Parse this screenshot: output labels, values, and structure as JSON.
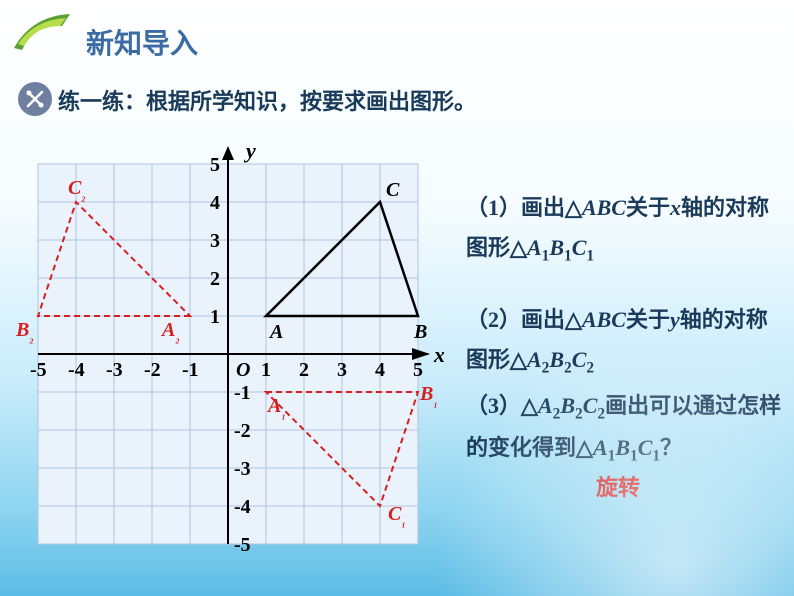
{
  "header": {
    "title": "新知导入",
    "logo_colors": [
      "#5aa035",
      "#b5de4a"
    ]
  },
  "practice": {
    "label": "练一练：根据所学知识，按要求画出图形。",
    "icon": "✕"
  },
  "chart": {
    "type": "coordinate-plane",
    "xlim": [
      -5,
      5
    ],
    "ylim": [
      -5,
      5
    ],
    "tick_step": 1,
    "grid_color": "#b0c4e0",
    "axis_color": "#000000",
    "background_color": "#eaf2fb",
    "axis_labels": {
      "x": "x",
      "y": "y",
      "origin": "O"
    },
    "x_ticks": [
      "-5",
      "-4",
      "-3",
      "-2",
      "-1",
      "1",
      "2",
      "3",
      "4",
      "5"
    ],
    "y_ticks_pos": [
      "1",
      "2",
      "3",
      "4",
      "5"
    ],
    "y_ticks_neg": [
      "-1",
      "-2",
      "-3",
      "-4",
      "-5"
    ],
    "triangles": {
      "ABC": {
        "points": {
          "A": [
            1,
            1
          ],
          "B": [
            5,
            1
          ],
          "C": [
            4,
            4
          ]
        },
        "stroke": "#000000",
        "stroke_width": 2.5,
        "dash": null
      },
      "A1B1C1": {
        "points": {
          "A1": [
            1,
            -1
          ],
          "B1": [
            5,
            -1
          ],
          "C1": [
            4,
            -4
          ]
        },
        "stroke": "#d62020",
        "stroke_width": 2,
        "dash": "6,4"
      },
      "A2B2C2": {
        "points": {
          "A2": [
            -1,
            1
          ],
          "B2": [
            -5,
            1
          ],
          "C2": [
            -4,
            4
          ]
        },
        "stroke": "#d62020",
        "stroke_width": 2,
        "dash": "6,4"
      }
    },
    "point_labels": {
      "A": "A",
      "B": "B",
      "C": "C",
      "A1": "A₁",
      "B1": "B₁",
      "C1": "C₁",
      "A2": "A₂",
      "B2": "B₂",
      "C2": "C₂"
    },
    "label_colors": {
      "main": "#000000",
      "reflected": "#d62020"
    }
  },
  "questions": {
    "q1": "（1）画出△ABC关于x轴的对称图形△A₁B₁C₁",
    "q2": "（2）画出△ABC关于y轴的对称图形△A₂B₂C₂",
    "q3": "（3）△A₂B₂C₂画出可以通过怎样的变化得到△A₁B₁C₁？",
    "answer": "旋转"
  }
}
